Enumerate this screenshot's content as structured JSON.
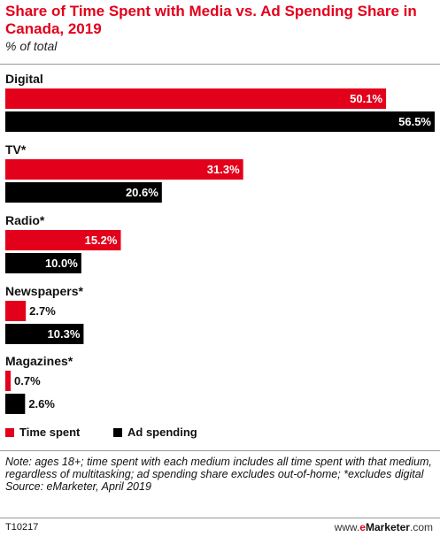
{
  "header": {
    "title": "Share of Time Spent with Media vs. Ad Spending Share in Canada, 2019",
    "subtitle": "% of total"
  },
  "legend": {
    "time_spent": "Time spent",
    "ad_spending": "Ad spending"
  },
  "colors": {
    "time_spent": "#e3001b",
    "ad_spending": "#000000"
  },
  "note": "Note: ages 18+; time spent with each medium includes all time spent with that medium, regardless of multitasking; ad spending share excludes out-of-home; *excludes digital",
  "source": "Source: eMarketer, April 2019",
  "footer": {
    "id": "T10217",
    "brand_prefix": "www.",
    "brand_e": "e",
    "brand_rest": "Marketer",
    "brand_suffix": ".com"
  },
  "chart_data": {
    "type": "bar",
    "orientation": "horizontal",
    "categories": [
      "Digital",
      "TV*",
      "Radio*",
      "Newspapers*",
      "Magazines*"
    ],
    "series": [
      {
        "name": "Time spent",
        "values": [
          50.1,
          31.3,
          15.2,
          2.7,
          0.7
        ],
        "labels": [
          "50.1%",
          "31.3%",
          "15.2%",
          "2.7%",
          "0.7%"
        ]
      },
      {
        "name": "Ad spending",
        "values": [
          56.5,
          20.6,
          10.0,
          10.3,
          2.6
        ],
        "labels": [
          "56.5%",
          "20.6%",
          "10.0%",
          "10.3%",
          "2.6%"
        ]
      }
    ],
    "title": "Share of Time Spent with Media vs. Ad Spending Share in Canada, 2019",
    "subtitle": "% of total",
    "xlim": [
      0,
      56.5
    ],
    "grid": false,
    "legend_position": "bottom-left"
  }
}
